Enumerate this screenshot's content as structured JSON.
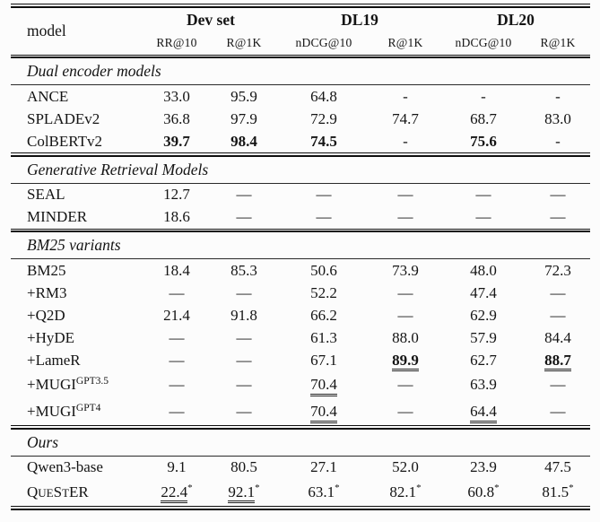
{
  "page": {
    "background": "#fcfcfc",
    "text_color": "#141414",
    "rule_color": "#0e0e0e"
  },
  "table": {
    "header": {
      "model": "model",
      "groups": [
        {
          "label": "Dev set",
          "sub1": "RR@10",
          "sub2": "R@1K"
        },
        {
          "label": "DL19",
          "sub1": "nDCG@10",
          "sub2": "R@1K"
        },
        {
          "label": "DL20",
          "sub1": "nDCG@10",
          "sub2": "R@1K"
        }
      ]
    },
    "sections": [
      {
        "title": "Dual encoder models",
        "rows": [
          {
            "name": "ANCE",
            "c": [
              "33.0",
              "95.9",
              "64.8",
              "-",
              "-",
              "-"
            ]
          },
          {
            "name": "SPLADEv2",
            "c": [
              "36.8",
              "97.9",
              "72.9",
              "74.7",
              "68.7",
              "83.0"
            ]
          },
          {
            "name": "ColBERTv2",
            "c": [
              "39.7",
              "98.4",
              "74.5",
              "-",
              "75.6",
              "-"
            ]
          }
        ]
      },
      {
        "title": "Generative Retrieval Models",
        "rows": [
          {
            "name": "SEAL",
            "c": [
              "12.7",
              "—",
              "—",
              "—",
              "—",
              "—"
            ]
          },
          {
            "name": "MINDER",
            "c": [
              "18.6",
              "—",
              "—",
              "—",
              "—",
              "—"
            ]
          }
        ]
      },
      {
        "title": "BM25 variants",
        "rows": [
          {
            "name": "BM25",
            "c": [
              "18.4",
              "85.3",
              "50.6",
              "73.9",
              "48.0",
              "72.3"
            ]
          },
          {
            "name": "+RM3",
            "c": [
              "—",
              "—",
              "52.2",
              "—",
              "47.4",
              "—"
            ]
          },
          {
            "name": "+Q2D",
            "c": [
              "21.4",
              "91.8",
              "66.2",
              "—",
              "62.9",
              "—"
            ]
          },
          {
            "name": "+HyDE",
            "c": [
              "—",
              "—",
              "61.3",
              "88.0",
              "57.9",
              "84.4"
            ]
          },
          {
            "name": "+LameR",
            "c": [
              "—",
              "—",
              "67.1",
              "89.9",
              "62.7",
              "88.7"
            ]
          },
          {
            "name": "+MUGI",
            "sup": "GPT3.5",
            "c": [
              "—",
              "—",
              "70.4",
              "—",
              "63.9",
              "—"
            ]
          },
          {
            "name": "+MUGI",
            "sup": "GPT4",
            "c": [
              "—",
              "—",
              "70.4",
              "—",
              "64.4",
              "—"
            ]
          }
        ]
      },
      {
        "title": "Ours",
        "rows": [
          {
            "name": "Qwen3-base",
            "c": [
              "9.1",
              "80.5",
              "27.1",
              "52.0",
              "23.9",
              "47.5"
            ]
          },
          {
            "name_parts": {
              "p0": "Q",
              "p1": "UE",
              "p2": "S",
              "p3": "T",
              "p4": "ER"
            },
            "star": "*",
            "c": [
              "22.4",
              "92.1",
              "63.1",
              "82.1",
              "60.8",
              "81.5"
            ]
          }
        ]
      }
    ]
  }
}
